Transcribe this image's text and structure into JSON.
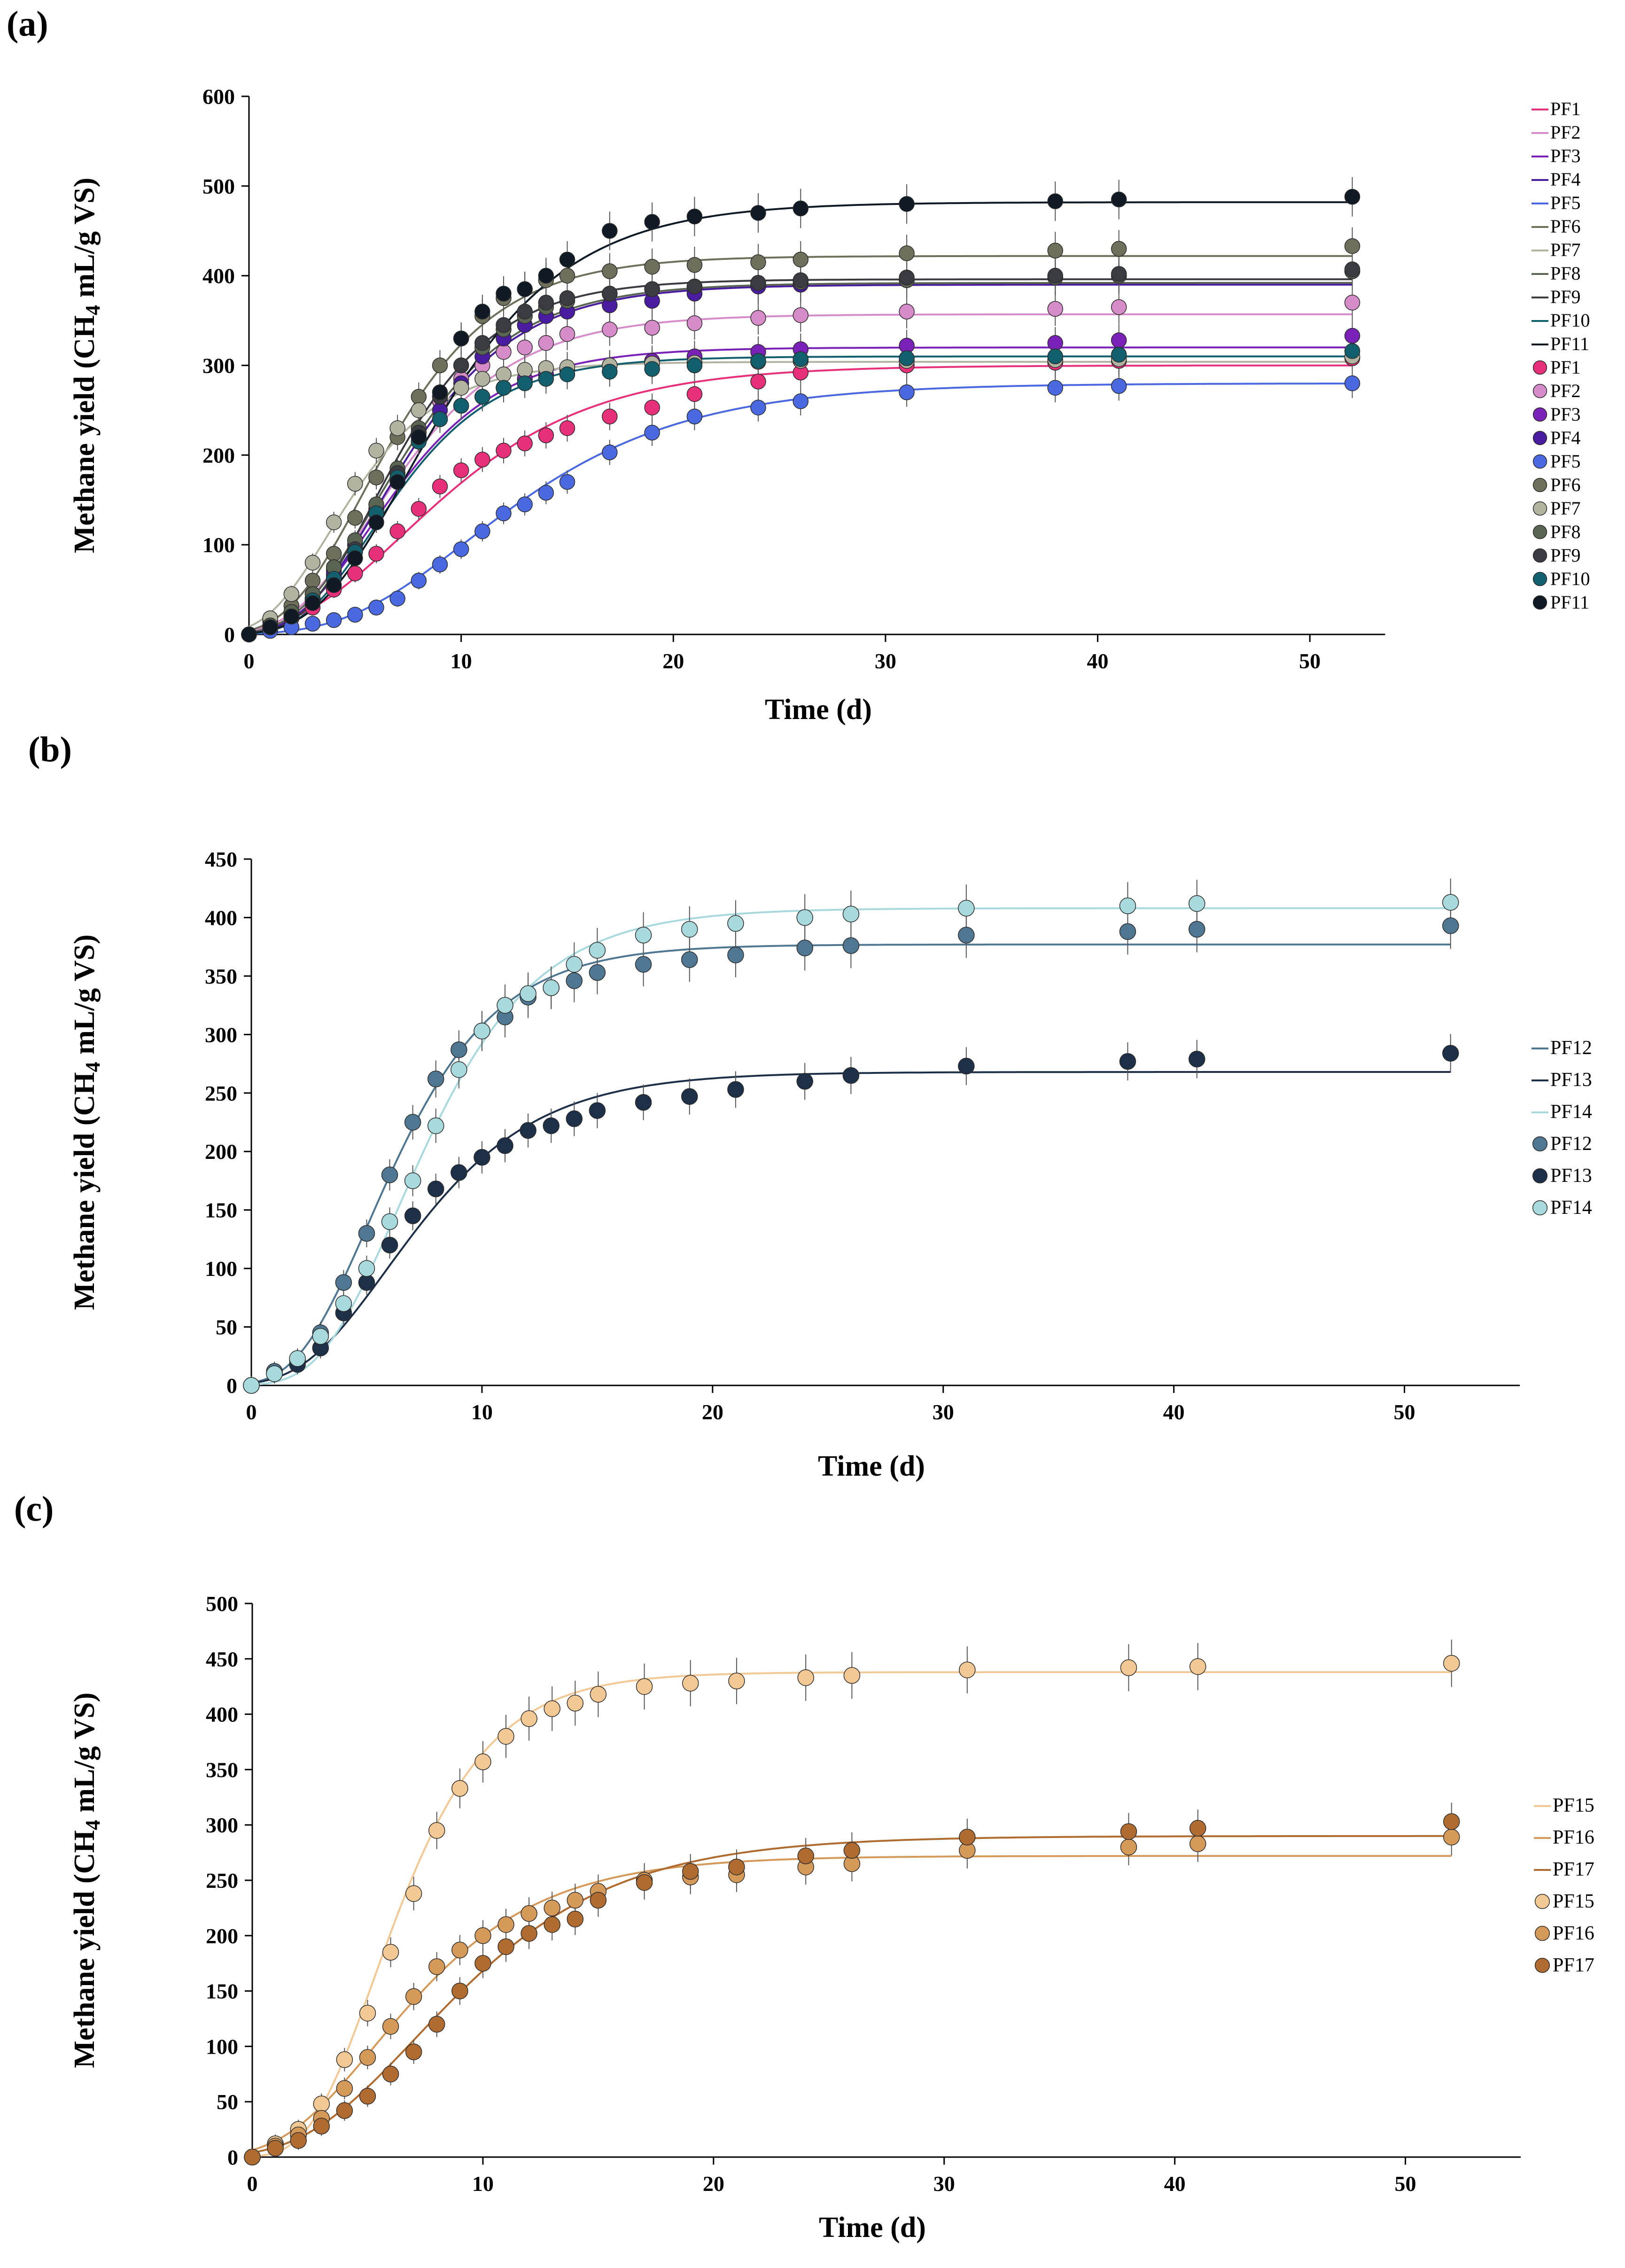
{
  "panels": [
    {
      "label": "(a)",
      "chart_data": {
        "type": "scatter",
        "title": "",
        "xlabel": "Time (d)",
        "ylabel": "Methane yield (CH4 mL/g VS)",
        "xlim": [
          0,
          55
        ],
        "ylim": [
          0,
          600
        ],
        "xticks": [
          0,
          10,
          20,
          30,
          40,
          50
        ],
        "yticks": [
          0,
          100,
          200,
          300,
          400,
          500,
          600
        ],
        "legend_position": "right",
        "x": [
          0,
          1,
          2,
          3,
          4,
          5,
          6,
          7,
          8,
          9,
          10,
          11,
          12,
          13,
          14,
          15,
          17,
          19,
          21,
          24,
          26,
          31,
          38,
          41,
          52
        ],
        "series": [
          {
            "name": "PF1",
            "color": "#e8307a",
            "fit": {
              "P": 300,
              "Rm": 22,
              "lambda": 2.2
            },
            "values": [
              0,
              8,
              18,
              30,
              50,
              68,
              90,
              115,
              140,
              165,
              183,
              195,
              205,
              213,
              222,
              230,
              243,
              253,
              268,
              282,
              292,
              300,
              303,
              305,
              308
            ]
          },
          {
            "name": "PF2",
            "color": "#d68cc9",
            "fit": {
              "P": 357,
              "Rm": 35,
              "lambda": 2.0
            },
            "values": [
              0,
              10,
              25,
              45,
              72,
              100,
              140,
              180,
              220,
              260,
              285,
              300,
              315,
              320,
              325,
              335,
              340,
              342,
              347,
              353,
              356,
              360,
              363,
              365,
              370
            ]
          },
          {
            "name": "PF3",
            "color": "#7a22b8",
            "fit": {
              "P": 320,
              "Rm": 34,
              "lambda": 2.2
            },
            "values": [
              0,
              10,
              22,
              40,
              65,
              95,
              135,
              175,
              215,
              240,
              255,
              265,
              275,
              285,
              290,
              295,
              300,
              305,
              310,
              315,
              318,
              322,
              325,
              328,
              333
            ]
          },
          {
            "name": "PF4",
            "color": "#4a1ca0",
            "fit": {
              "P": 390,
              "Rm": 40,
              "lambda": 2.5
            },
            "values": [
              0,
              8,
              20,
              40,
              68,
              100,
              140,
              180,
              220,
              250,
              280,
              310,
              330,
              345,
              355,
              360,
              367,
              372,
              380,
              388,
              390,
              395,
              398,
              400,
              405
            ]
          },
          {
            "name": "PF5",
            "color": "#4a68e0",
            "fit": {
              "P": 280,
              "Rm": 18,
              "lambda": 4.5
            },
            "values": [
              0,
              4,
              8,
              12,
              16,
              22,
              30,
              40,
              60,
              78,
              95,
              115,
              135,
              145,
              158,
              170,
              203,
              225,
              243,
              253,
              260,
              270,
              275,
              277,
              280
            ]
          },
          {
            "name": "PF6",
            "color": "#6f705b",
            "fit": {
              "P": 422,
              "Rm": 44,
              "lambda": 1.8
            },
            "values": [
              0,
              15,
              32,
              60,
              90,
              130,
              175,
              220,
              265,
              300,
              330,
              355,
              375,
              385,
              395,
              400,
              405,
              410,
              412,
              415,
              418,
              425,
              428,
              430,
              433
            ]
          },
          {
            "name": "PF7",
            "color": "#b3b3a2",
            "fit": {
              "P": 304,
              "Rm": 38,
              "lambda": 0.8
            },
            "values": [
              0,
              18,
              45,
              80,
              125,
              168,
              205,
              230,
              250,
              265,
              275,
              285,
              290,
              295,
              297,
              298,
              300,
              302,
              303,
              304,
              305,
              305,
              306,
              307,
              310
            ]
          },
          {
            "name": "PF8",
            "color": "#5a6452",
            "fit": {
              "P": 392,
              "Rm": 40,
              "lambda": 2.3
            },
            "values": [
              0,
              10,
              25,
              45,
              75,
              105,
              145,
              185,
              230,
              265,
              300,
              320,
              340,
              355,
              365,
              372,
              380,
              385,
              388,
              392,
              393,
              395,
              398,
              400,
              405
            ]
          },
          {
            "name": "PF9",
            "color": "#3b3b42",
            "fit": {
              "P": 396,
              "Rm": 45,
              "lambda": 2.6
            },
            "values": [
              0,
              8,
              20,
              38,
              62,
              95,
              135,
              180,
              225,
              265,
              300,
              325,
              345,
              360,
              370,
              375,
              380,
              385,
              388,
              392,
              395,
              398,
              400,
              402,
              407
            ]
          },
          {
            "name": "PF10",
            "color": "#125f6e",
            "fit": {
              "P": 310,
              "Rm": 35,
              "lambda": 2.5
            },
            "values": [
              0,
              8,
              20,
              38,
              62,
              92,
              135,
              175,
              215,
              240,
              255,
              265,
              275,
              280,
              285,
              290,
              293,
              296,
              300,
              305,
              307,
              308,
              310,
              312,
              316
            ]
          },
          {
            "name": "PF11",
            "color": "#0f1a24",
            "fit": {
              "P": 482,
              "Rm": 42,
              "lambda": 3.2
            },
            "values": [
              0,
              8,
              20,
              35,
              55,
              85,
              125,
              170,
              220,
              270,
              330,
              360,
              380,
              385,
              400,
              418,
              450,
              460,
              466,
              470,
              475,
              480,
              483,
              485,
              488
            ]
          }
        ]
      }
    },
    {
      "label": "(b)",
      "chart_data": {
        "type": "scatter",
        "title": "",
        "xlabel": "Time (d)",
        "ylabel": "Methane yield (CH4 mL/g VS)",
        "xlim": [
          0,
          55
        ],
        "ylim": [
          0,
          450
        ],
        "xticks": [
          0,
          10,
          20,
          30,
          40,
          50
        ],
        "yticks": [
          0,
          50,
          100,
          150,
          200,
          250,
          300,
          350,
          400,
          450
        ],
        "legend_position": "right",
        "x": [
          0,
          1,
          2,
          3,
          4,
          5,
          6,
          7,
          8,
          9,
          10,
          11,
          12,
          13,
          14,
          15,
          17,
          19,
          21,
          24,
          26,
          31,
          38,
          41,
          52
        ],
        "series": [
          {
            "name": "PF12",
            "color": "#4f7792",
            "fit": {
              "P": 377,
              "Rm": 45,
              "lambda": 2.0
            },
            "values": [
              0,
              12,
              22,
              45,
              88,
              130,
              180,
              225,
              262,
              287,
              303,
              315,
              332,
              340,
              346,
              353,
              360,
              364,
              368,
              374,
              376,
              385,
              388,
              390,
              393
            ]
          },
          {
            "name": "PF13",
            "color": "#1e2f48",
            "fit": {
              "P": 268,
              "Rm": 27,
              "lambda": 2.2
            },
            "values": [
              0,
              10,
              18,
              32,
              62,
              88,
              120,
              145,
              168,
              182,
              195,
              205,
              218,
              222,
              228,
              235,
              242,
              247,
              253,
              260,
              265,
              273,
              277,
              279,
              284
            ]
          },
          {
            "name": "PF14",
            "color": "#a8d9dc",
            "fit": {
              "P": 408,
              "Rm": 45,
              "lambda": 3.0
            },
            "values": [
              0,
              10,
              23,
              42,
              70,
              100,
              140,
              175,
              222,
              270,
              303,
              325,
              335,
              340,
              360,
              372,
              385,
              390,
              395,
              400,
              403,
              408,
              410,
              412,
              413
            ]
          }
        ]
      }
    },
    {
      "label": "(c)",
      "chart_data": {
        "type": "scatter",
        "title": "",
        "xlabel": "Time (d)",
        "ylabel": "Methane yield (CH4 mL/g VS)",
        "xlim": [
          0,
          55
        ],
        "ylim": [
          0,
          500
        ],
        "xticks": [
          0,
          10,
          20,
          30,
          40,
          50
        ],
        "yticks": [
          0,
          50,
          100,
          150,
          200,
          250,
          300,
          350,
          400,
          450,
          500
        ],
        "legend_position": "right",
        "x": [
          0,
          1,
          2,
          3,
          4,
          5,
          6,
          7,
          8,
          9,
          10,
          11,
          12,
          13,
          14,
          15,
          17,
          19,
          21,
          24,
          26,
          31,
          38,
          41,
          52
        ],
        "series": [
          {
            "name": "PF15",
            "color": "#f2c895",
            "fit": {
              "P": 438,
              "Rm": 58,
              "lambda": 2.5
            },
            "values": [
              0,
              12,
              25,
              48,
              88,
              130,
              185,
              238,
              295,
              333,
              357,
              380,
              396,
              405,
              410,
              418,
              425,
              428,
              430,
              433,
              435,
              440,
              442,
              443,
              446
            ]
          },
          {
            "name": "PF16",
            "color": "#d59a5a",
            "fit": {
              "P": 272,
              "Rm": 25,
              "lambda": 1.3
            },
            "values": [
              0,
              10,
              20,
              35,
              62,
              90,
              118,
              145,
              172,
              187,
              200,
              210,
              220,
              225,
              232,
              240,
              250,
              253,
              255,
              262,
              265,
              277,
              280,
              283,
              289
            ]
          },
          {
            "name": "PF17",
            "color": "#b06c30",
            "fit": {
              "P": 290,
              "Rm": 22,
              "lambda": 2.2
            },
            "values": [
              0,
              8,
              15,
              28,
              42,
              55,
              75,
              95,
              120,
              150,
              175,
              190,
              202,
              210,
              215,
              232,
              248,
              258,
              262,
              272,
              277,
              289,
              294,
              297,
              303
            ]
          }
        ]
      }
    }
  ]
}
